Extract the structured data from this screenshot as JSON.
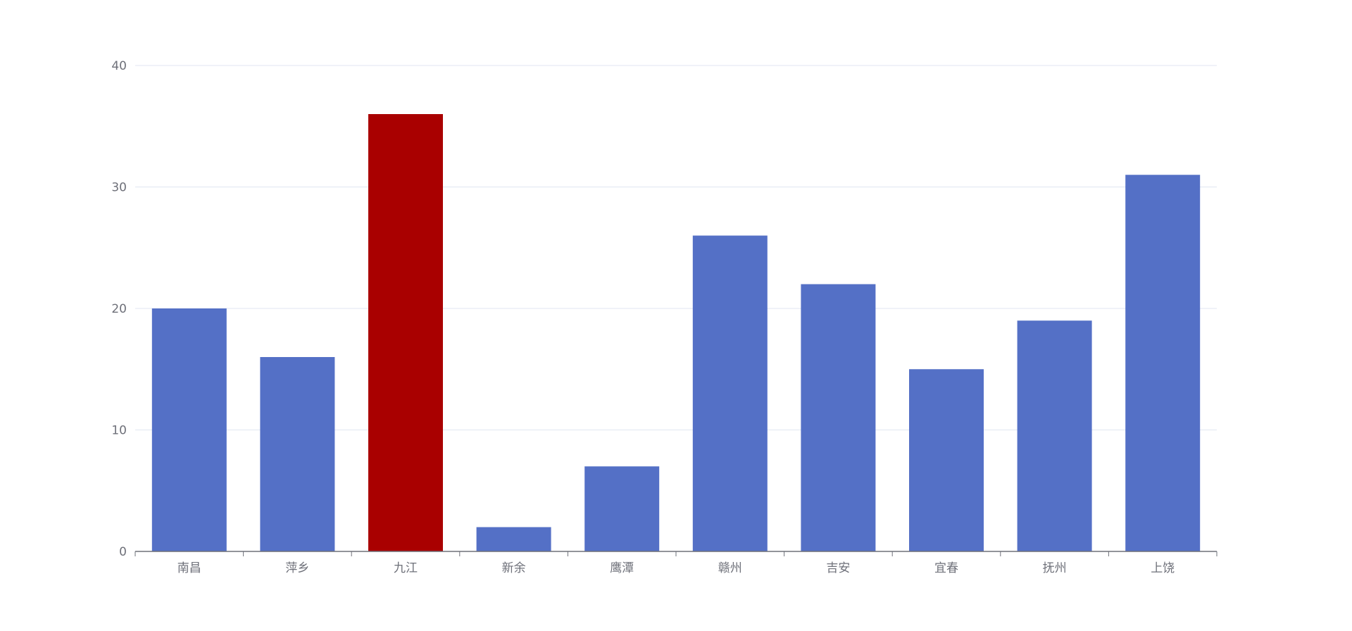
{
  "chart_data": {
    "type": "bar",
    "categories": [
      "南昌",
      "萍乡",
      "九江",
      "新余",
      "鹰潭",
      "赣州",
      "吉安",
      "宜春",
      "抚州",
      "上饶"
    ],
    "values": [
      20,
      16,
      36,
      2,
      7,
      26,
      22,
      15,
      19,
      31
    ],
    "ylim": [
      0,
      40
    ],
    "yticks": [
      0,
      10,
      20,
      30,
      40
    ],
    "grid": true,
    "colors": {
      "default": "#5470c6",
      "highlight": "#a90000",
      "highlight_index": 2,
      "grid": "#e0e6f1",
      "axis": "#6e7079"
    }
  }
}
